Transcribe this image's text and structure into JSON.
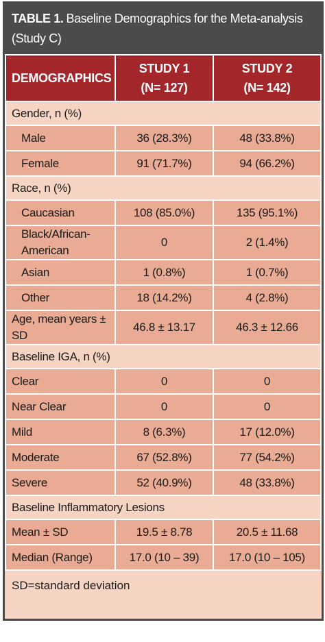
{
  "title": {
    "label": "TABLE 1.",
    "text": "Baseline Demographics for the Meta-analysis (Study C)"
  },
  "table": {
    "headers": [
      {
        "name": "DEMOGRAPHICS"
      },
      {
        "name": "STUDY 1",
        "n": "(N= 127)"
      },
      {
        "name": "STUDY 2",
        "n": "(N= 142)"
      }
    ],
    "rows": [
      {
        "section": "Gender, n (%)"
      },
      {
        "cells": [
          "Male",
          "36 (28.3%)",
          "48 (33.8%)"
        ]
      },
      {
        "cells": [
          "Female",
          "91 (71.7%)",
          "94 (66.2%)"
        ]
      },
      {
        "section": "Race, n (%)"
      },
      {
        "cells": [
          "Caucasian",
          "108 (85.0%)",
          "135 (95.1%)"
        ]
      },
      {
        "cells": [
          "Black/African-American",
          "0",
          "2 (1.4%)"
        ]
      },
      {
        "cells": [
          "Asian",
          "1 (0.8%)",
          "1 (0.7%)"
        ]
      },
      {
        "cells": [
          "Other",
          "18 (14.2%)",
          "4 (2.8%)"
        ]
      },
      {
        "cells": [
          "Age, mean years ± SD",
          "46.8 ± 13.17",
          "46.3 ± 12.66"
        ],
        "flush": true
      },
      {
        "section": "Baseline IGA, n (%)"
      },
      {
        "cells": [
          "Clear",
          "0",
          "0"
        ],
        "flush": true
      },
      {
        "cells": [
          "Near Clear",
          "0",
          "0"
        ],
        "flush": true
      },
      {
        "cells": [
          "Mild",
          "8 (6.3%)",
          "17 (12.0%)"
        ],
        "flush": true
      },
      {
        "cells": [
          "Moderate",
          "67 (52.8%)",
          "77 (54.2%)"
        ],
        "flush": true
      },
      {
        "cells": [
          "Severe",
          "52 (40.9%)",
          "48 (33.8%)"
        ],
        "flush": true
      },
      {
        "section": "Baseline Inflammatory Lesions"
      },
      {
        "cells": [
          "Mean ± SD",
          "19.5 ± 8.78",
          "20.5 ± 11.68"
        ],
        "flush": true
      },
      {
        "cells": [
          "Median (Range)",
          "17.0 (10 – 39)",
          "17.0 (10 – 105)"
        ],
        "flush": true
      }
    ]
  },
  "footer": "SD=standard deviation"
}
